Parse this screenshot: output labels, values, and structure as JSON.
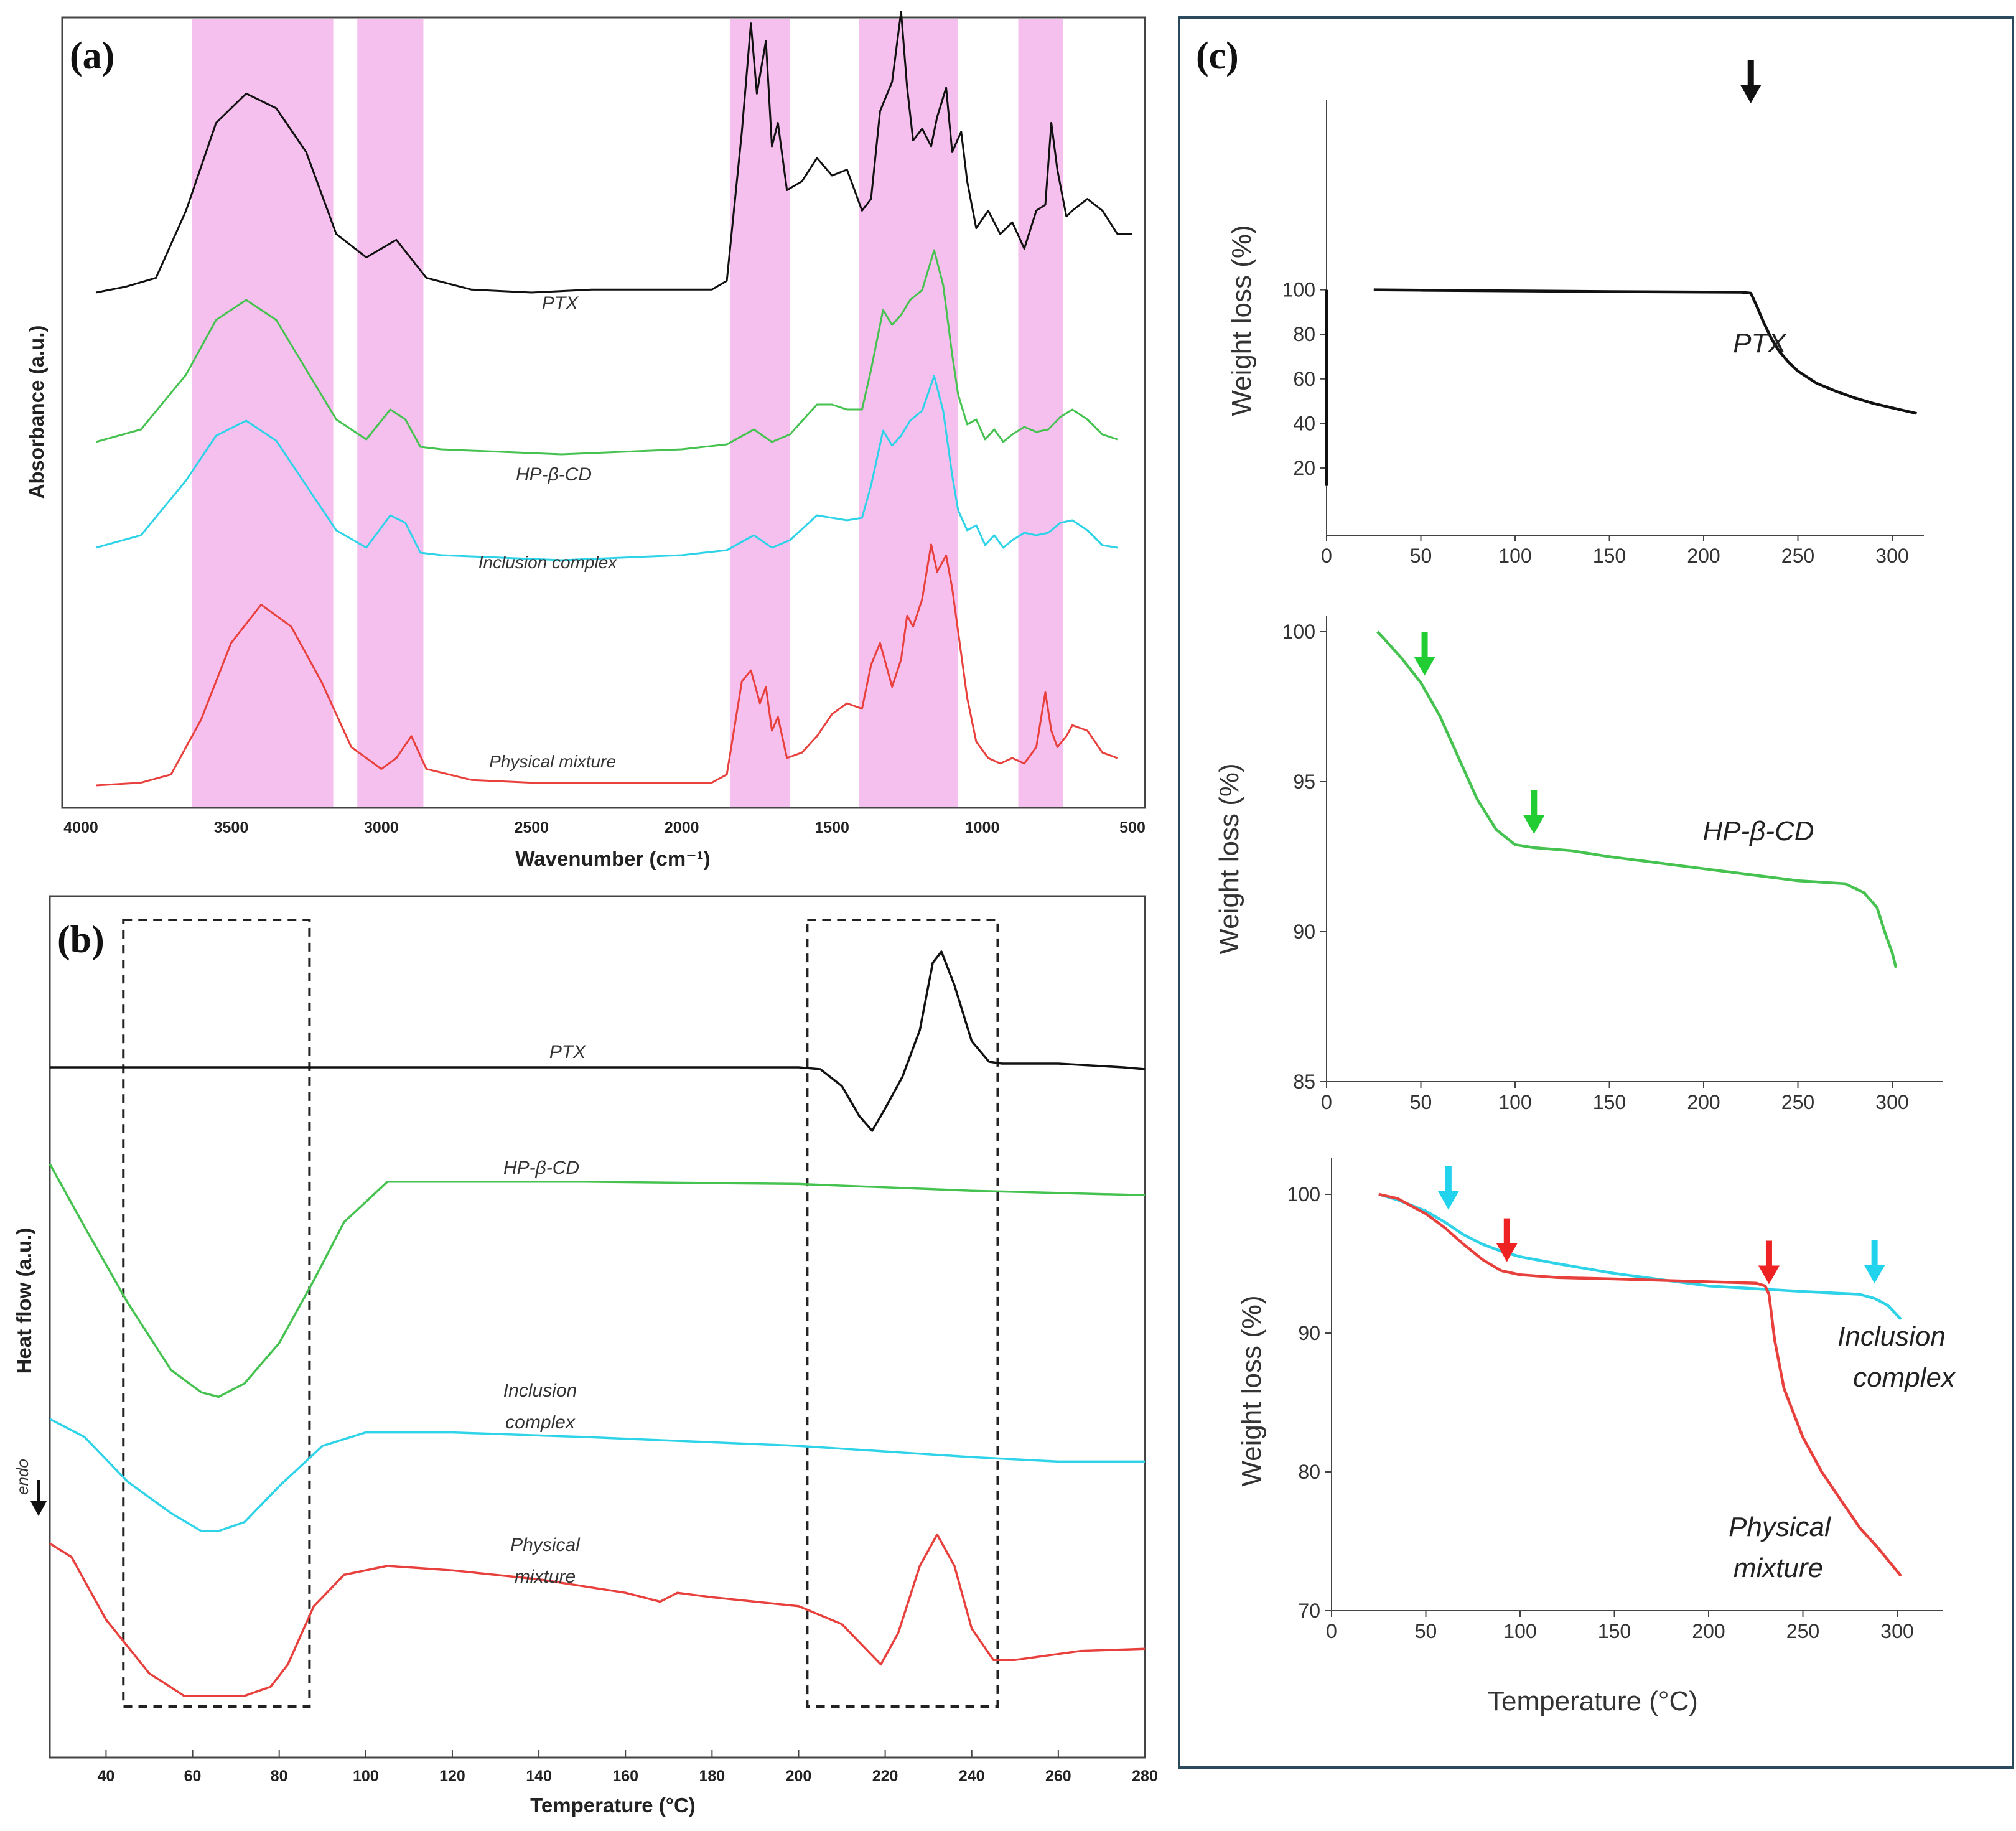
{
  "colors": {
    "ptx": "#111111",
    "hpbcd": "#45c24f",
    "inclusion": "#2ed3e8",
    "physical": "#e8403c",
    "highlight": "#f6c0ee",
    "frame_c": "#2b4a5e",
    "arrow_green": "#22cc33",
    "arrow_cyan": "#22d3ee",
    "arrow_red": "#ee2222",
    "arrow_black": "#111111"
  },
  "panel_a": {
    "letter": "(a)",
    "xlabel": "Wavenumber (cm⁻¹)",
    "ylabel": "Absorbance (a.u.)",
    "xticks": [
      "4000",
      "3500",
      "3000",
      "2500",
      "2000",
      "1500",
      "1000",
      "500"
    ]
  },
  "panel_b": {
    "letter": "(b)",
    "xlabel": "Temperature (°C)",
    "ylabel": "Heat flow (a.u.)",
    "endo_label": "endo",
    "xticks": [
      "40",
      "60",
      "80",
      "100",
      "120",
      "140",
      "160",
      "180",
      "200",
      "220",
      "240",
      "260",
      "280"
    ]
  },
  "panel_c": {
    "letter": "(c)",
    "xlabel": "Temperature (°C)",
    "ylabel": "Weight loss (%)",
    "top_xticks": [
      "0",
      "50",
      "100",
      "150",
      "200",
      "250",
      "300"
    ],
    "top_yticks": [
      "20",
      "40",
      "60",
      "80",
      "100"
    ],
    "mid_yticks": [
      "85",
      "90",
      "95",
      "100"
    ],
    "bot_yticks": [
      "70",
      "80",
      "90",
      "100"
    ]
  },
  "chart_data": [
    {
      "panel": "a",
      "type": "line",
      "title": "",
      "xlabel": "Wavenumber (cm⁻¹)",
      "ylabel": "Absorbance (a.u.)",
      "xlim": [
        4000,
        500
      ],
      "x_reversed": true,
      "grid": false,
      "highlight_bands_cm-1": [
        [
          3630,
          3160
        ],
        [
          3080,
          2860
        ],
        [
          1840,
          1640
        ],
        [
          1410,
          1080
        ],
        [
          880,
          730
        ]
      ],
      "series": [
        {
          "name": "PTX",
          "color": "#111111",
          "x": [
            3950,
            3850,
            3750,
            3650,
            3550,
            3450,
            3350,
            3250,
            3150,
            3050,
            2950,
            2850,
            2700,
            2500,
            2300,
            2100,
            1900,
            1850,
            1800,
            1770,
            1750,
            1720,
            1700,
            1680,
            1650,
            1600,
            1550,
            1500,
            1450,
            1400,
            1370,
            1340,
            1300,
            1270,
            1250,
            1230,
            1200,
            1170,
            1150,
            1120,
            1100,
            1070,
            1050,
            1020,
            980,
            940,
            900,
            860,
            820,
            790,
            770,
            750,
            720,
            700,
            650,
            600,
            550,
            500
          ],
          "y": [
            0.0,
            0.02,
            0.05,
            0.28,
            0.58,
            0.68,
            0.63,
            0.48,
            0.2,
            0.12,
            0.18,
            0.05,
            0.01,
            0.0,
            0.01,
            0.01,
            0.01,
            0.04,
            0.55,
            0.92,
            0.68,
            0.86,
            0.5,
            0.58,
            0.35,
            0.38,
            0.46,
            0.4,
            0.42,
            0.28,
            0.32,
            0.62,
            0.72,
            0.96,
            0.7,
            0.52,
            0.56,
            0.5,
            0.6,
            0.7,
            0.48,
            0.55,
            0.38,
            0.22,
            0.28,
            0.2,
            0.24,
            0.15,
            0.28,
            0.3,
            0.58,
            0.42,
            0.26,
            0.28,
            0.32,
            0.28,
            0.2,
            0.2
          ]
        },
        {
          "name": "HP-β-CD",
          "color": "#45c24f",
          "x": [
            3950,
            3800,
            3650,
            3550,
            3450,
            3350,
            3250,
            3150,
            3050,
            2970,
            2920,
            2870,
            2800,
            2600,
            2400,
            2200,
            2000,
            1850,
            1760,
            1700,
            1640,
            1550,
            1500,
            1450,
            1400,
            1370,
            1330,
            1300,
            1270,
            1240,
            1200,
            1160,
            1130,
            1100,
            1080,
            1050,
            1020,
            990,
            960,
            930,
            900,
            860,
            820,
            780,
            740,
            700,
            650,
            600,
            550
          ],
          "y": [
            0.05,
            0.1,
            0.32,
            0.54,
            0.62,
            0.54,
            0.34,
            0.14,
            0.06,
            0.18,
            0.14,
            0.03,
            0.02,
            0.01,
            0.0,
            0.01,
            0.02,
            0.04,
            0.1,
            0.05,
            0.08,
            0.2,
            0.2,
            0.18,
            0.18,
            0.34,
            0.58,
            0.52,
            0.56,
            0.62,
            0.66,
            0.82,
            0.68,
            0.4,
            0.24,
            0.12,
            0.14,
            0.06,
            0.1,
            0.05,
            0.08,
            0.11,
            0.09,
            0.1,
            0.15,
            0.18,
            0.14,
            0.08,
            0.06
          ]
        },
        {
          "name": "Inclusion complex",
          "color": "#2ed3e8",
          "x": [
            3950,
            3800,
            3650,
            3550,
            3450,
            3350,
            3250,
            3150,
            3050,
            2970,
            2920,
            2870,
            2800,
            2600,
            2400,
            2200,
            2000,
            1850,
            1760,
            1700,
            1640,
            1550,
            1500,
            1450,
            1400,
            1370,
            1330,
            1300,
            1270,
            1240,
            1200,
            1160,
            1130,
            1100,
            1080,
            1050,
            1020,
            990,
            960,
            930,
            900,
            860,
            820,
            780,
            740,
            700,
            650,
            600,
            550
          ],
          "y": [
            0.05,
            0.1,
            0.32,
            0.5,
            0.56,
            0.48,
            0.3,
            0.12,
            0.05,
            0.18,
            0.15,
            0.03,
            0.02,
            0.01,
            0.0,
            0.01,
            0.02,
            0.04,
            0.1,
            0.05,
            0.08,
            0.18,
            0.17,
            0.16,
            0.17,
            0.3,
            0.52,
            0.46,
            0.5,
            0.56,
            0.6,
            0.74,
            0.6,
            0.34,
            0.2,
            0.12,
            0.14,
            0.06,
            0.1,
            0.05,
            0.08,
            0.11,
            0.1,
            0.11,
            0.15,
            0.16,
            0.12,
            0.06,
            0.05
          ]
        },
        {
          "name": "Physical mixture",
          "color": "#e8403c",
          "x": [
            3950,
            3800,
            3700,
            3600,
            3500,
            3400,
            3300,
            3200,
            3100,
            3000,
            2950,
            2900,
            2850,
            2700,
            2500,
            2300,
            2100,
            1900,
            1850,
            1800,
            1770,
            1740,
            1720,
            1700,
            1680,
            1650,
            1600,
            1550,
            1500,
            1450,
            1400,
            1370,
            1340,
            1300,
            1270,
            1250,
            1230,
            1200,
            1170,
            1150,
            1120,
            1100,
            1070,
            1050,
            1020,
            980,
            940,
            900,
            860,
            820,
            790,
            770,
            750,
            720,
            700,
            650,
            600,
            550
          ],
          "y": [
            0.0,
            0.01,
            0.04,
            0.24,
            0.52,
            0.66,
            0.58,
            0.38,
            0.14,
            0.06,
            0.1,
            0.18,
            0.06,
            0.02,
            0.01,
            0.01,
            0.01,
            0.01,
            0.04,
            0.38,
            0.42,
            0.3,
            0.36,
            0.2,
            0.25,
            0.1,
            0.12,
            0.18,
            0.26,
            0.3,
            0.28,
            0.44,
            0.52,
            0.36,
            0.46,
            0.62,
            0.58,
            0.68,
            0.88,
            0.78,
            0.84,
            0.72,
            0.48,
            0.32,
            0.16,
            0.1,
            0.08,
            0.1,
            0.08,
            0.14,
            0.34,
            0.2,
            0.14,
            0.18,
            0.22,
            0.2,
            0.12,
            0.1
          ]
        }
      ]
    },
    {
      "panel": "b",
      "type": "line",
      "title": "",
      "xlabel": "Temperature (°C)",
      "ylabel": "Heat flow (a.u.)",
      "xlim": [
        27,
        280
      ],
      "grid": false,
      "highlight_regions_degC": [
        [
          44,
          87
        ],
        [
          202,
          246
        ]
      ],
      "series": [
        {
          "name": "PTX",
          "color": "#111111",
          "x": [
            27,
            60,
            100,
            150,
            200,
            205,
            210,
            214,
            217,
            220,
            224,
            228,
            231,
            233,
            236,
            240,
            244,
            247,
            260,
            275,
            280
          ],
          "y": [
            0.0,
            0.0,
            0.0,
            0.0,
            0.0,
            -0.01,
            -0.1,
            -0.26,
            -0.34,
            -0.22,
            -0.05,
            0.2,
            0.56,
            0.62,
            0.44,
            0.14,
            0.03,
            0.02,
            0.02,
            0.0,
            -0.01
          ]
        },
        {
          "name": "HP-β-CD",
          "color": "#45c24f",
          "x": [
            27,
            35,
            45,
            55,
            62,
            66,
            72,
            80,
            88,
            95,
            105,
            120,
            150,
            200,
            240,
            280
          ],
          "y": [
            0.0,
            -0.28,
            -0.62,
            -0.92,
            -1.02,
            -1.04,
            -0.98,
            -0.8,
            -0.52,
            -0.26,
            -0.08,
            -0.08,
            -0.08,
            -0.09,
            -0.12,
            -0.14
          ]
        },
        {
          "name": "Inclusion complex",
          "color": "#2ed3e8",
          "x": [
            27,
            35,
            45,
            55,
            62,
            66,
            72,
            80,
            90,
            100,
            120,
            150,
            200,
            240,
            260,
            280
          ],
          "y": [
            0.0,
            -0.08,
            -0.28,
            -0.42,
            -0.5,
            -0.5,
            -0.46,
            -0.3,
            -0.12,
            -0.06,
            -0.06,
            -0.08,
            -0.12,
            -0.17,
            -0.19,
            -0.19
          ]
        },
        {
          "name": "Physical mixture",
          "color": "#e8403c",
          "x": [
            27,
            32,
            40,
            50,
            58,
            65,
            72,
            78,
            82,
            88,
            95,
            105,
            120,
            140,
            160,
            168,
            172,
            180,
            200,
            210,
            215,
            219,
            223,
            228,
            232,
            236,
            240,
            245,
            250,
            265,
            280
          ],
          "y": [
            0.0,
            -0.06,
            -0.34,
            -0.58,
            -0.68,
            -0.68,
            -0.68,
            -0.64,
            -0.54,
            -0.28,
            -0.14,
            -0.1,
            -0.12,
            -0.16,
            -0.22,
            -0.26,
            -0.22,
            -0.24,
            -0.28,
            -0.36,
            -0.46,
            -0.54,
            -0.4,
            -0.1,
            0.04,
            -0.1,
            -0.38,
            -0.52,
            -0.52,
            -0.48,
            -0.47
          ]
        }
      ]
    },
    {
      "panel": "c",
      "sub": "top",
      "type": "line",
      "title": "",
      "xlabel": "",
      "ylabel": "Weight loss (%)",
      "xlim": [
        0,
        315
      ],
      "ylim": [
        10,
        102
      ],
      "grid": false,
      "arrows_degC": [
        225
      ],
      "series": [
        {
          "name": "PTX",
          "color": "#111111",
          "x": [
            25,
            50,
            100,
            150,
            200,
            220,
            225,
            228,
            232,
            236,
            240,
            245,
            250,
            260,
            270,
            280,
            290,
            300,
            313
          ],
          "y": [
            100.0,
            99.8,
            99.5,
            99.2,
            99.0,
            98.9,
            98.5,
            93.0,
            85.0,
            78.0,
            72.5,
            67.5,
            63.5,
            58.0,
            54.5,
            51.5,
            49.0,
            47.0,
            44.5
          ]
        }
      ]
    },
    {
      "panel": "c",
      "sub": "middle",
      "type": "line",
      "title": "",
      "xlabel": "",
      "ylabel": "Weight loss (%)",
      "xlim": [
        0,
        315
      ],
      "ylim": [
        85,
        101
      ],
      "grid": false,
      "arrows_degC": [
        52,
        110
      ],
      "series": [
        {
          "name": "HP-β-CD",
          "color": "#45c24f",
          "x": [
            27,
            30,
            40,
            50,
            60,
            70,
            80,
            90,
            100,
            110,
            130,
            150,
            200,
            250,
            275,
            285,
            292,
            296,
            300,
            302
          ],
          "y": [
            100.0,
            99.8,
            99.1,
            98.3,
            97.2,
            95.8,
            94.4,
            93.4,
            92.9,
            92.8,
            92.7,
            92.5,
            92.1,
            91.7,
            91.6,
            91.3,
            90.8,
            90.0,
            89.3,
            88.8
          ]
        }
      ]
    },
    {
      "panel": "c",
      "sub": "bottom",
      "type": "line",
      "title": "",
      "xlabel": "Temperature (°C)",
      "ylabel": "Weight loss (%)",
      "xlim": [
        0,
        315
      ],
      "ylim": [
        70,
        102
      ],
      "grid": false,
      "arrows_degC": {
        "inclusion_complex": [
          62,
          288
        ],
        "physical_mixture": [
          93,
          232
        ]
      },
      "series": [
        {
          "name": "Inclusion complex",
          "color": "#2ed3e8",
          "x": [
            25,
            35,
            50,
            60,
            70,
            80,
            90,
            100,
            120,
            150,
            200,
            250,
            280,
            288,
            295,
            302
          ],
          "y": [
            100.0,
            99.6,
            98.8,
            98.0,
            97.1,
            96.4,
            95.9,
            95.5,
            95.0,
            94.3,
            93.4,
            93.0,
            92.8,
            92.5,
            92.0,
            91.0
          ]
        },
        {
          "name": "Physical mixture",
          "color": "#e8403c",
          "x": [
            25,
            35,
            50,
            60,
            70,
            80,
            90,
            100,
            120,
            150,
            200,
            225,
            230,
            232,
            235,
            240,
            250,
            260,
            270,
            280,
            290,
            302
          ],
          "y": [
            100.0,
            99.7,
            98.6,
            97.6,
            96.4,
            95.3,
            94.5,
            94.2,
            94.0,
            93.9,
            93.7,
            93.6,
            93.4,
            92.8,
            89.5,
            86.0,
            82.5,
            80.0,
            78.0,
            76.0,
            74.5,
            72.5
          ]
        }
      ]
    }
  ]
}
